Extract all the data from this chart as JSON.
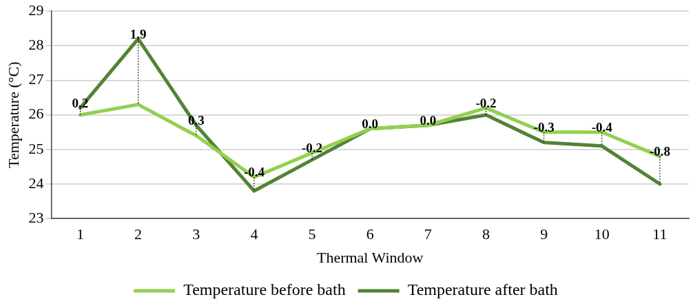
{
  "chart_data": {
    "type": "line",
    "xlabel": "Thermal Window",
    "ylabel": "Temperature (°C)",
    "categories": [
      "1",
      "2",
      "3",
      "4",
      "5",
      "6",
      "7",
      "8",
      "9",
      "10",
      "11"
    ],
    "series": [
      {
        "name": "Temperature before bath",
        "color": "#92d050",
        "values": [
          26.0,
          26.3,
          25.4,
          24.2,
          24.9,
          25.6,
          25.7,
          26.2,
          25.5,
          25.5,
          24.8
        ]
      },
      {
        "name": "Temperature after bath",
        "color": "#548235",
        "values": [
          26.2,
          28.2,
          25.7,
          23.8,
          24.7,
          25.6,
          25.7,
          26.0,
          25.2,
          25.1,
          24.0
        ]
      }
    ],
    "ylim": [
      23,
      29
    ],
    "yticks": [
      23,
      24,
      25,
      26,
      27,
      28,
      29
    ],
    "grid": "y",
    "legend": "bottom",
    "marker": "none",
    "line_style": "solid",
    "annotations": [
      {
        "text": "0.2",
        "x": "1",
        "y": 26.2
      },
      {
        "text": "1.9",
        "x": "2",
        "y": 28.2
      },
      {
        "text": "0.3",
        "x": "3",
        "y": 25.7
      },
      {
        "text": "-0.4",
        "x": "4",
        "y": 24.2
      },
      {
        "text": "-0.2",
        "x": "5",
        "y": 24.9
      },
      {
        "text": "0.0",
        "x": "6",
        "y": 25.6
      },
      {
        "text": "0.0",
        "x": "7",
        "y": 25.7
      },
      {
        "text": "-0.2",
        "x": "8",
        "y": 26.2
      },
      {
        "text": "-0.3",
        "x": "9",
        "y": 25.5
      },
      {
        "text": "-0.4",
        "x": "10",
        "y": 25.5
      },
      {
        "text": "-0.8",
        "x": "11",
        "y": 24.8
      }
    ]
  }
}
